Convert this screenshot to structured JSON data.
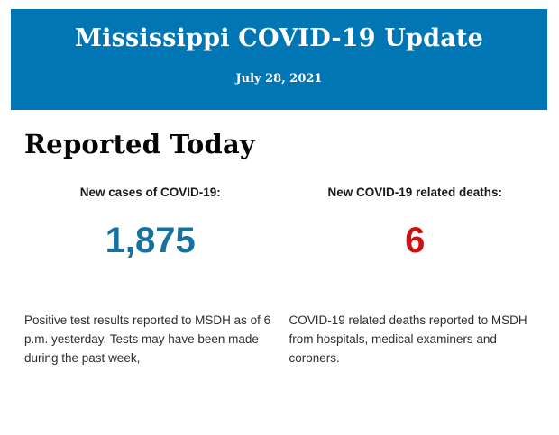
{
  "banner": {
    "title": "Mississippi COVID-19 Update",
    "date": "July 28, 2021",
    "background_color": "#0077b4",
    "text_color": "#ffffff"
  },
  "section": {
    "heading": "Reported Today"
  },
  "stats": [
    {
      "label": "New cases of COVID-19:",
      "value": "1,875",
      "value_color": "#17719f",
      "description": "Positive test results reported to MSDH as of 6 p.m. yesterday. Tests may have been made during the past week,"
    },
    {
      "label": "New COVID-19 related deaths:",
      "value": "6",
      "value_color": "#cc1111",
      "description": "COVID-19 related deaths reported to MSDH from hospitals, medical examiners and coroners."
    }
  ]
}
